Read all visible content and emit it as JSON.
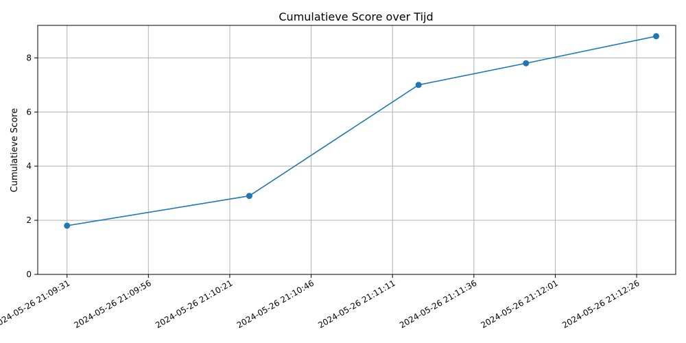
{
  "chart_data": {
    "type": "line",
    "title": "Cumulatieve Score over Tijd",
    "xlabel": "",
    "ylabel": "Cumulatieve Score",
    "grid": true,
    "x_ticks": [
      "2024-05-26 21:09:31",
      "2024-05-26 21:09:56",
      "2024-05-26 21:10:21",
      "2024-05-26 21:10:46",
      "2024-05-26 21:11:11",
      "2024-05-26 21:11:36",
      "2024-05-26 21:12:01",
      "2024-05-26 21:12:26"
    ],
    "y_ticks": [
      0,
      2,
      4,
      6,
      8
    ],
    "ylim": [
      0,
      9.2
    ],
    "xlim": [
      "2024-05-26 21:09:22",
      "2024-05-26 21:12:38"
    ],
    "series": [
      {
        "color": "#1f77b4",
        "x": [
          "2024-05-26 21:09:31",
          "2024-05-26 21:10:27",
          "2024-05-26 21:11:19",
          "2024-05-26 21:11:52",
          "2024-05-26 21:12:32"
        ],
        "y": [
          1.8,
          2.9,
          7.0,
          7.8,
          8.8
        ]
      }
    ]
  }
}
